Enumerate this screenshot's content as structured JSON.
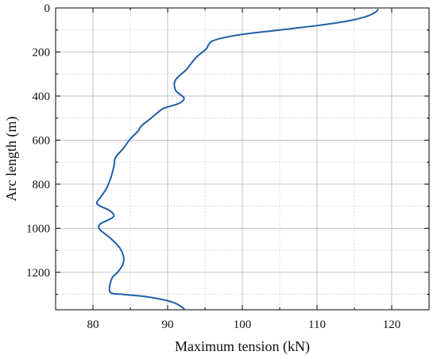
{
  "chart_data": {
    "type": "line",
    "xlabel": "Maximum tension (kN)",
    "ylabel": "Arc length (m)",
    "xlim": [
      75,
      125
    ],
    "ylim": [
      1370,
      0
    ],
    "y_axis_inverted": true,
    "xticks": [
      80,
      90,
      100,
      110,
      120
    ],
    "xtick_labels": [
      "80",
      "90",
      "100",
      "110",
      "120"
    ],
    "yticks": [
      0,
      200,
      400,
      600,
      800,
      1000,
      1200
    ],
    "ytick_labels": [
      "0",
      "200",
      "400",
      "600",
      "800",
      "1000",
      "1200"
    ],
    "grid": "major solid, minor dotted",
    "legend": "none",
    "line_color": "#1f5fa8",
    "series": [
      {
        "x": [
          118.2,
          117.8,
          116.5,
          114.0,
          110.0,
          105.0,
          100.0,
          97.5,
          96.0,
          95.5,
          95.2,
          94.5,
          93.8,
          93.2,
          92.5,
          91.5,
          91.0,
          90.9,
          91.2,
          92.2,
          91.4,
          89.5,
          88.5,
          87.6,
          86.5,
          86.0,
          85.0,
          84.0,
          83.0,
          82.8,
          82.4,
          81.8,
          81.0,
          80.5,
          81.0,
          82.0,
          82.6,
          82.8,
          82.2,
          81.0,
          80.8,
          81.4,
          82.5,
          83.6,
          84.1,
          84.0,
          83.3,
          82.5,
          82.3,
          84.0,
          87.0,
          89.5,
          91.0,
          92.0,
          92.4
        ],
        "y": [
          5,
          20,
          40,
          60,
          80,
          100,
          120,
          135,
          150,
          165,
          185,
          205,
          225,
          250,
          280,
          310,
          330,
          355,
          380,
          410,
          435,
          455,
          480,
          505,
          535,
          560,
          595,
          640,
          680,
          720,
          770,
          820,
          860,
          885,
          900,
          915,
          930,
          945,
          960,
          980,
          1000,
          1020,
          1050,
          1090,
          1130,
          1165,
          1200,
          1230,
          1290,
          1300,
          1310,
          1325,
          1340,
          1360,
          1375
        ]
      }
    ]
  }
}
